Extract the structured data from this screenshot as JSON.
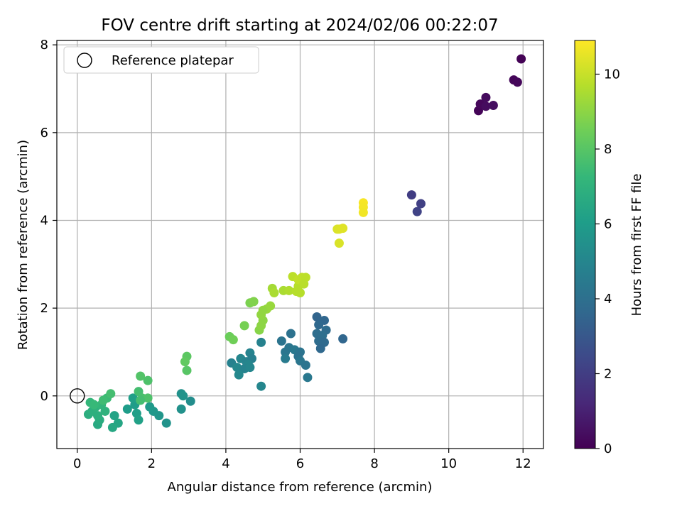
{
  "chart_data": {
    "type": "scatter",
    "title": "FOV centre drift starting at 2024/02/06 00:22:07",
    "xlabel": "Angular distance from reference (arcmin)",
    "ylabel": "Rotation from reference (arcmin)",
    "xlim": [
      -0.55,
      12.55
    ],
    "ylim": [
      -1.2,
      8.1
    ],
    "x_ticks": [
      0,
      2,
      4,
      6,
      8,
      10,
      12
    ],
    "y_ticks": [
      0,
      2,
      4,
      6,
      8
    ],
    "grid": true,
    "legend": {
      "position": "top-left",
      "entries": [
        "Reference platepar"
      ]
    },
    "reference_point": {
      "x": 0,
      "y": 0
    },
    "colorbar": {
      "label": "Hours from first FF file",
      "colormap": "viridis",
      "range": [
        0,
        10.9
      ],
      "ticks": [
        0,
        2,
        4,
        6,
        8,
        10
      ]
    },
    "viridis_stops": [
      "#440154",
      "#482878",
      "#3e4989",
      "#31688e",
      "#26828e",
      "#1f9e89",
      "#35b779",
      "#6ece58",
      "#b5de2b",
      "#fde725"
    ],
    "points": [
      {
        "x": 10.8,
        "y": 6.5,
        "h": 0.1
      },
      {
        "x": 10.85,
        "y": 6.65,
        "h": 0.2
      },
      {
        "x": 11.0,
        "y": 6.8,
        "h": 0.3
      },
      {
        "x": 11.0,
        "y": 6.6,
        "h": 0.35
      },
      {
        "x": 11.2,
        "y": 6.62,
        "h": 0.4
      },
      {
        "x": 11.75,
        "y": 7.2,
        "h": 0.15
      },
      {
        "x": 11.85,
        "y": 7.15,
        "h": 0.2
      },
      {
        "x": 11.95,
        "y": 7.68,
        "h": 0.05
      },
      {
        "x": 9.0,
        "y": 4.58,
        "h": 2.0
      },
      {
        "x": 9.25,
        "y": 4.38,
        "h": 2.1
      },
      {
        "x": 9.15,
        "y": 4.2,
        "h": 2.2
      },
      {
        "x": 6.45,
        "y": 1.8,
        "h": 3.5
      },
      {
        "x": 6.65,
        "y": 1.72,
        "h": 3.6
      },
      {
        "x": 6.5,
        "y": 1.62,
        "h": 3.7
      },
      {
        "x": 6.7,
        "y": 1.5,
        "h": 3.8
      },
      {
        "x": 6.45,
        "y": 1.42,
        "h": 3.9
      },
      {
        "x": 6.6,
        "y": 1.38,
        "h": 3.95
      },
      {
        "x": 6.5,
        "y": 1.25,
        "h": 3.85
      },
      {
        "x": 6.65,
        "y": 1.22,
        "h": 3.75
      },
      {
        "x": 6.55,
        "y": 1.08,
        "h": 3.7
      },
      {
        "x": 7.15,
        "y": 1.3,
        "h": 3.6
      },
      {
        "x": 5.5,
        "y": 1.25,
        "h": 4.2
      },
      {
        "x": 5.75,
        "y": 1.42,
        "h": 4.1
      },
      {
        "x": 5.7,
        "y": 1.1,
        "h": 4.3
      },
      {
        "x": 5.85,
        "y": 1.05,
        "h": 4.4
      },
      {
        "x": 5.6,
        "y": 1.0,
        "h": 4.3
      },
      {
        "x": 6.0,
        "y": 1.0,
        "h": 4.2
      },
      {
        "x": 5.95,
        "y": 0.9,
        "h": 4.1
      },
      {
        "x": 5.6,
        "y": 0.85,
        "h": 4.5
      },
      {
        "x": 6.0,
        "y": 0.8,
        "h": 4.3
      },
      {
        "x": 6.15,
        "y": 0.7,
        "h": 4.2
      },
      {
        "x": 6.2,
        "y": 0.42,
        "h": 4.4
      },
      {
        "x": 4.95,
        "y": 1.22,
        "h": 4.8
      },
      {
        "x": 4.65,
        "y": 0.98,
        "h": 4.9
      },
      {
        "x": 4.4,
        "y": 0.85,
        "h": 5.0
      },
      {
        "x": 4.55,
        "y": 0.78,
        "h": 4.9
      },
      {
        "x": 4.15,
        "y": 0.75,
        "h": 4.8
      },
      {
        "x": 4.7,
        "y": 0.85,
        "h": 4.7
      },
      {
        "x": 4.6,
        "y": 0.72,
        "h": 5.0
      },
      {
        "x": 4.3,
        "y": 0.65,
        "h": 5.1
      },
      {
        "x": 4.5,
        "y": 0.62,
        "h": 4.9
      },
      {
        "x": 4.65,
        "y": 0.65,
        "h": 5.0
      },
      {
        "x": 4.35,
        "y": 0.48,
        "h": 5.1
      },
      {
        "x": 4.95,
        "y": 0.22,
        "h": 5.0
      },
      {
        "x": 2.8,
        "y": 0.05,
        "h": 5.5
      },
      {
        "x": 2.85,
        "y": 0.0,
        "h": 5.6
      },
      {
        "x": 3.05,
        "y": -0.12,
        "h": 5.3
      },
      {
        "x": 2.8,
        "y": -0.3,
        "h": 5.5
      },
      {
        "x": 2.4,
        "y": -0.62,
        "h": 5.6
      },
      {
        "x": 2.2,
        "y": -0.45,
        "h": 5.7
      },
      {
        "x": 2.05,
        "y": -0.35,
        "h": 5.8
      },
      {
        "x": 1.95,
        "y": -0.25,
        "h": 5.9
      },
      {
        "x": 1.55,
        "y": -0.2,
        "h": 6.0
      },
      {
        "x": 1.5,
        "y": -0.05,
        "h": 6.1
      },
      {
        "x": 1.35,
        "y": -0.3,
        "h": 6.0
      },
      {
        "x": 1.6,
        "y": -0.4,
        "h": 6.1
      },
      {
        "x": 1.65,
        "y": -0.55,
        "h": 6.2
      },
      {
        "x": 1.0,
        "y": -0.45,
        "h": 6.3
      },
      {
        "x": 1.1,
        "y": -0.62,
        "h": 6.4
      },
      {
        "x": 0.95,
        "y": -0.72,
        "h": 6.5
      },
      {
        "x": 0.55,
        "y": -0.65,
        "h": 6.6
      },
      {
        "x": 0.6,
        "y": -0.55,
        "h": 6.7
      },
      {
        "x": 0.3,
        "y": -0.42,
        "h": 6.8
      },
      {
        "x": 0.4,
        "y": -0.35,
        "h": 6.9
      },
      {
        "x": 0.5,
        "y": -0.25,
        "h": 7.0
      },
      {
        "x": 0.55,
        "y": -0.45,
        "h": 6.9
      },
      {
        "x": 0.75,
        "y": -0.35,
        "h": 7.0
      },
      {
        "x": 0.65,
        "y": -0.2,
        "h": 7.1
      },
      {
        "x": 0.35,
        "y": -0.15,
        "h": 7.2
      },
      {
        "x": 0.45,
        "y": -0.2,
        "h": 7.3
      },
      {
        "x": 0.8,
        "y": -0.05,
        "h": 7.4
      },
      {
        "x": 0.9,
        "y": 0.05,
        "h": 7.6
      },
      {
        "x": 0.7,
        "y": -0.1,
        "h": 7.5
      },
      {
        "x": 1.65,
        "y": 0.1,
        "h": 7.6
      },
      {
        "x": 1.7,
        "y": 0.45,
        "h": 7.9
      },
      {
        "x": 1.9,
        "y": 0.35,
        "h": 7.8
      },
      {
        "x": 1.75,
        "y": -0.05,
        "h": 7.7
      },
      {
        "x": 1.9,
        "y": -0.05,
        "h": 7.8
      },
      {
        "x": 1.7,
        "y": -0.1,
        "h": 7.6
      },
      {
        "x": 2.95,
        "y": 0.9,
        "h": 8.1
      },
      {
        "x": 2.9,
        "y": 0.78,
        "h": 8.2
      },
      {
        "x": 2.95,
        "y": 0.58,
        "h": 8.0
      },
      {
        "x": 4.1,
        "y": 1.35,
        "h": 8.4
      },
      {
        "x": 4.2,
        "y": 1.28,
        "h": 8.5
      },
      {
        "x": 4.5,
        "y": 1.6,
        "h": 8.6
      },
      {
        "x": 4.65,
        "y": 2.12,
        "h": 8.7
      },
      {
        "x": 4.75,
        "y": 2.15,
        "h": 8.8
      },
      {
        "x": 4.9,
        "y": 1.5,
        "h": 8.9
      },
      {
        "x": 5.0,
        "y": 1.72,
        "h": 9.0
      },
      {
        "x": 4.95,
        "y": 1.6,
        "h": 9.0
      },
      {
        "x": 4.95,
        "y": 1.85,
        "h": 9.1
      },
      {
        "x": 5.1,
        "y": 1.98,
        "h": 9.2
      },
      {
        "x": 5.2,
        "y": 2.05,
        "h": 9.2
      },
      {
        "x": 5.0,
        "y": 1.95,
        "h": 9.1
      },
      {
        "x": 5.25,
        "y": 2.45,
        "h": 9.4
      },
      {
        "x": 5.3,
        "y": 2.35,
        "h": 9.5
      },
      {
        "x": 5.55,
        "y": 2.4,
        "h": 9.5
      },
      {
        "x": 5.7,
        "y": 2.4,
        "h": 9.6
      },
      {
        "x": 5.9,
        "y": 2.38,
        "h": 9.7
      },
      {
        "x": 5.95,
        "y": 2.5,
        "h": 9.7
      },
      {
        "x": 5.8,
        "y": 2.72,
        "h": 9.8
      },
      {
        "x": 5.95,
        "y": 2.65,
        "h": 9.9
      },
      {
        "x": 6.05,
        "y": 2.7,
        "h": 9.85
      },
      {
        "x": 6.15,
        "y": 2.7,
        "h": 9.8
      },
      {
        "x": 6.1,
        "y": 2.55,
        "h": 9.75
      },
      {
        "x": 6.0,
        "y": 2.35,
        "h": 9.7
      },
      {
        "x": 7.0,
        "y": 3.8,
        "h": 10.3
      },
      {
        "x": 7.05,
        "y": 3.8,
        "h": 10.35
      },
      {
        "x": 7.15,
        "y": 3.82,
        "h": 10.4
      },
      {
        "x": 7.05,
        "y": 3.48,
        "h": 10.3
      },
      {
        "x": 7.7,
        "y": 4.4,
        "h": 10.8
      },
      {
        "x": 7.7,
        "y": 4.3,
        "h": 10.75
      },
      {
        "x": 7.7,
        "y": 4.18,
        "h": 10.7
      }
    ]
  }
}
